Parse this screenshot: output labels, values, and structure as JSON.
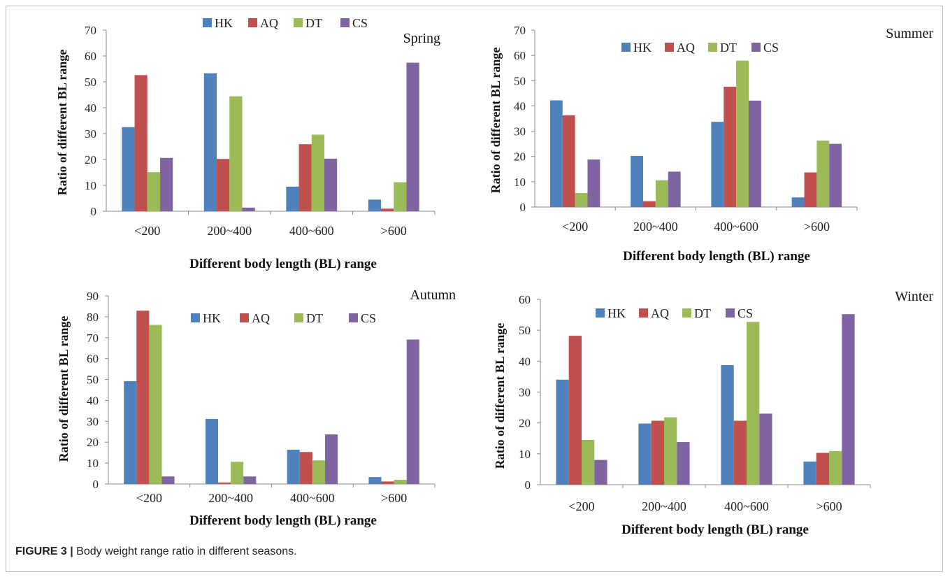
{
  "caption": {
    "label": "FIGURE 3 |",
    "text": " Body weight range ratio in different seasons."
  },
  "colors": {
    "HK": "#4f81bd",
    "AQ": "#c0504d",
    "DT": "#9bbb59",
    "CS": "#8064a2"
  },
  "chart_data": [
    {
      "type": "bar",
      "title": "Spring",
      "xlabel": "Different body length (BL) range",
      "ylabel": "Ratio of different BL range",
      "categories": [
        "<200",
        "200~400",
        "400~600",
        ">600"
      ],
      "ylim": [
        0,
        70
      ],
      "yticks": [
        0,
        10,
        20,
        30,
        40,
        50,
        60,
        70
      ],
      "legend": "top-center",
      "grid": false,
      "series": [
        {
          "name": "HK",
          "values": [
            32.5,
            53.3,
            9.5,
            4.5
          ]
        },
        {
          "name": "AQ",
          "values": [
            52.6,
            20.2,
            25.9,
            1.0
          ]
        },
        {
          "name": "DT",
          "values": [
            15.1,
            44.4,
            29.6,
            11.2
          ]
        },
        {
          "name": "CS",
          "values": [
            20.6,
            1.4,
            20.3,
            57.4
          ]
        }
      ]
    },
    {
      "type": "bar",
      "title": "Summer",
      "xlabel": "Different body length (BL) range",
      "ylabel": "Ratio of different BL range",
      "categories": [
        "<200",
        "200~400",
        "400~600",
        ">600"
      ],
      "ylim": [
        0,
        70
      ],
      "yticks": [
        0,
        10,
        20,
        30,
        40,
        50,
        60,
        70
      ],
      "legend": "top-center",
      "grid": false,
      "series": [
        {
          "name": "HK",
          "values": [
            42.2,
            20.2,
            33.7,
            3.8
          ]
        },
        {
          "name": "AQ",
          "values": [
            36.3,
            2.3,
            47.6,
            13.7
          ]
        },
        {
          "name": "DT",
          "values": [
            5.5,
            10.6,
            57.9,
            26.3
          ]
        },
        {
          "name": "CS",
          "values": [
            18.8,
            14.0,
            42.1,
            25.0
          ]
        }
      ]
    },
    {
      "type": "bar",
      "title": "Autumn",
      "xlabel": "Different body length (BL) range",
      "ylabel": "Ratio of different BL range",
      "categories": [
        "<200",
        "200~400",
        "400~600",
        ">600"
      ],
      "ylim": [
        0,
        90
      ],
      "yticks": [
        0,
        10,
        20,
        30,
        40,
        50,
        60,
        70,
        80,
        90
      ],
      "legend": "top-center",
      "grid": false,
      "series": [
        {
          "name": "HK",
          "values": [
            49.2,
            31.1,
            16.4,
            3.3
          ]
        },
        {
          "name": "AQ",
          "values": [
            82.9,
            0.7,
            15.3,
            1.2
          ]
        },
        {
          "name": "DT",
          "values": [
            76.1,
            10.6,
            11.3,
            2.0
          ]
        },
        {
          "name": "CS",
          "values": [
            3.6,
            3.6,
            23.7,
            69.1
          ]
        }
      ]
    },
    {
      "type": "bar",
      "title": "Winter",
      "xlabel": "Different body length (BL) range",
      "ylabel": "Ratio of different BL range",
      "categories": [
        "<200",
        "200~400",
        "400~600",
        ">600"
      ],
      "ylim": [
        0,
        60
      ],
      "yticks": [
        0,
        10,
        20,
        30,
        40,
        50,
        60
      ],
      "legend": "top-center",
      "grid": false,
      "series": [
        {
          "name": "HK",
          "values": [
            34.0,
            19.8,
            38.7,
            7.5
          ]
        },
        {
          "name": "AQ",
          "values": [
            48.2,
            20.7,
            20.7,
            10.3
          ]
        },
        {
          "name": "DT",
          "values": [
            14.5,
            21.8,
            52.7,
            10.9
          ]
        },
        {
          "name": "CS",
          "values": [
            8.0,
            13.8,
            23.0,
            55.2
          ]
        }
      ]
    }
  ]
}
